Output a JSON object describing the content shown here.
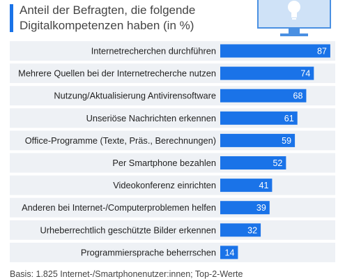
{
  "header": {
    "subtitle_line1": "Anteil der Befragten, die folgende",
    "subtitle_line2": "Digitalkompetenzen haben (in %)"
  },
  "footer": {
    "note": "Basis: 1.825 Internet-/Smartphonenutzer:innen; Top-2-Werte"
  },
  "icons": {
    "header_illustration": "monitor-lightbulb-icon"
  },
  "colors": {
    "bar": "#1a73e8",
    "row_band": "#eef1f5",
    "accent": "#1a73e8"
  },
  "chart_data": {
    "type": "bar",
    "orientation": "horizontal",
    "categories": [
      "Internetrecherchen durchführen",
      "Mehrere Quellen bei der Internetrecherche nutzen",
      "Nutzung/Aktualisierung Antivirensoftware",
      "Unseriöse Nachrichten erkennen",
      "Office-Programme (Texte, Präs., Berechnungen)",
      "Per Smartphone bezahlen",
      "Videokonferenz einrichten",
      "Anderen bei Internet-/Computerproblemen helfen",
      "Urheberrechtlich geschützte Bilder erkennen",
      "Programmiersprache beherrschen"
    ],
    "values": [
      87,
      74,
      68,
      61,
      59,
      52,
      41,
      39,
      32,
      14
    ],
    "xlim": [
      0,
      100
    ],
    "data_labels": true
  }
}
